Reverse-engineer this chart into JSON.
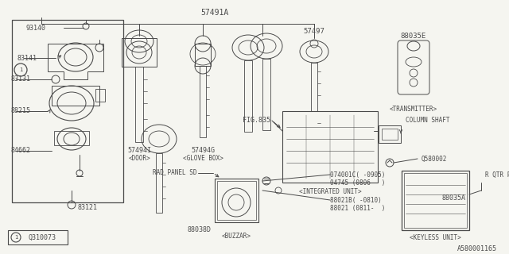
{
  "bg_color": "#f5f5f0",
  "line_color": "#4a4a4a",
  "lw": 0.7,
  "part_number": "A580001165",
  "diagram_ref": "Q310073",
  "fig_w": 6.4,
  "fig_h": 3.2,
  "dpi": 100,
  "xlim": [
    0,
    640
  ],
  "ylim": [
    0,
    320
  ]
}
